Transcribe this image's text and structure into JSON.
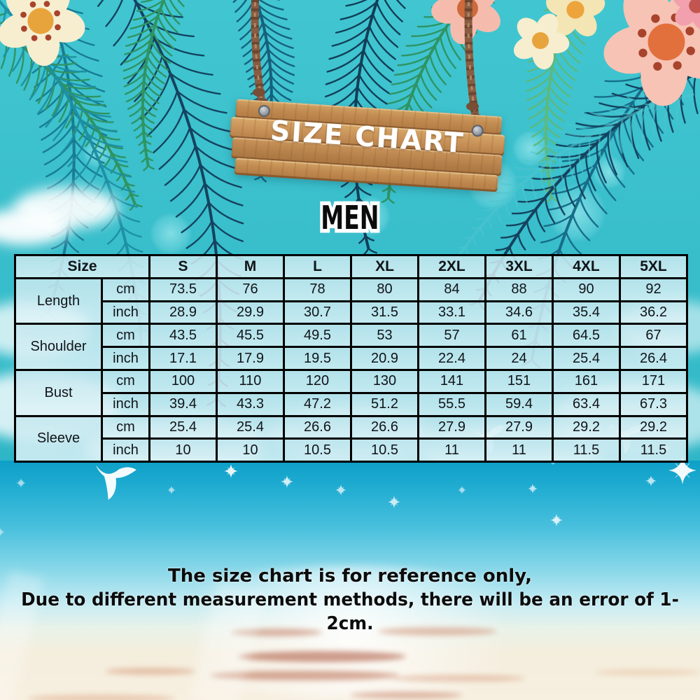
{
  "sign": {
    "title": "SIZE CHART"
  },
  "section": {
    "label": "MEN"
  },
  "table": {
    "corner_label": "Size",
    "sizes": [
      "S",
      "M",
      "L",
      "XL",
      "2XL",
      "3XL",
      "4XL",
      "5XL"
    ],
    "rows": [
      {
        "label": "Length",
        "units": [
          {
            "unit": "cm",
            "values": [
              "73.5",
              "76",
              "78",
              "80",
              "84",
              "88",
              "90",
              "92"
            ]
          },
          {
            "unit": "inch",
            "values": [
              "28.9",
              "29.9",
              "30.7",
              "31.5",
              "33.1",
              "34.6",
              "35.4",
              "36.2"
            ]
          }
        ]
      },
      {
        "label": "Shoulder",
        "units": [
          {
            "unit": "cm",
            "values": [
              "43.5",
              "45.5",
              "49.5",
              "53",
              "57",
              "61",
              "64.5",
              "67"
            ]
          },
          {
            "unit": "inch",
            "values": [
              "17.1",
              "17.9",
              "19.5",
              "20.9",
              "22.4",
              "24",
              "25.4",
              "26.4"
            ]
          }
        ]
      },
      {
        "label": "Bust",
        "units": [
          {
            "unit": "cm",
            "values": [
              "100",
              "110",
              "120",
              "130",
              "141",
              "151",
              "161",
              "171"
            ]
          },
          {
            "unit": "inch",
            "values": [
              "39.4",
              "43.3",
              "47.2",
              "51.2",
              "55.5",
              "59.4",
              "63.4",
              "67.3"
            ]
          }
        ]
      },
      {
        "label": "Sleeve",
        "units": [
          {
            "unit": "cm",
            "values": [
              "25.4",
              "25.4",
              "26.6",
              "26.6",
              "27.9",
              "27.9",
              "29.2",
              "29.2"
            ]
          },
          {
            "unit": "inch",
            "values": [
              "10",
              "10",
              "10.5",
              "10.5",
              "11",
              "11",
              "11.5",
              "11.5"
            ]
          }
        ]
      }
    ]
  },
  "footer": {
    "line1": "The size chart is for reference only,",
    "line2": "Due to different measurement methods, there will be an error of 1-2cm."
  },
  "colors": {
    "background_turquoise": "#38bfcb",
    "sea_blue": "#12a2c9",
    "sand": "#f6eedd",
    "table_cell_bg": "#d2ecf1",
    "table_border": "#000000",
    "wood_plank": "#c08a50",
    "wood_seam": "#7c4e26",
    "sign_text": "#ffffff",
    "body_text": "#0c0c0c"
  }
}
